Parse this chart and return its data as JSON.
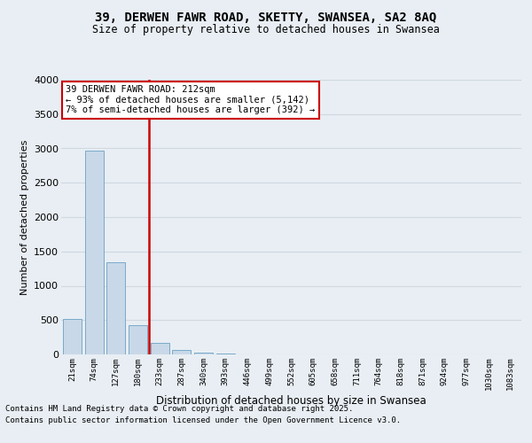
{
  "title1": "39, DERWEN FAWR ROAD, SKETTY, SWANSEA, SA2 8AQ",
  "title2": "Size of property relative to detached houses in Swansea",
  "xlabel": "Distribution of detached houses by size in Swansea",
  "ylabel": "Number of detached properties",
  "annotation_line1": "39 DERWEN FAWR ROAD: 212sqm",
  "annotation_line2": "← 93% of detached houses are smaller (5,142)",
  "annotation_line3": "7% of semi-detached houses are larger (392) →",
  "categories": [
    "21sqm",
    "74sqm",
    "127sqm",
    "180sqm",
    "233sqm",
    "287sqm",
    "340sqm",
    "393sqm",
    "446sqm",
    "499sqm",
    "552sqm",
    "605sqm",
    "658sqm",
    "711sqm",
    "764sqm",
    "818sqm",
    "871sqm",
    "924sqm",
    "977sqm",
    "1030sqm",
    "1083sqm"
  ],
  "values": [
    520,
    2970,
    1340,
    430,
    170,
    65,
    28,
    12,
    6,
    3,
    2,
    1,
    1,
    0,
    0,
    0,
    0,
    0,
    0,
    0,
    0
  ],
  "bar_color": "#c8d8e8",
  "bar_edge_color": "#7aaac8",
  "vline_color": "#cc0000",
  "annotation_box_edge_color": "#cc0000",
  "annotation_box_face_color": "#ffffff",
  "grid_color": "#d0d8e0",
  "background_color": "#e8eef4",
  "ylim": [
    0,
    4000
  ],
  "yticks": [
    0,
    500,
    1000,
    1500,
    2000,
    2500,
    3000,
    3500,
    4000
  ],
  "footnote1": "Contains HM Land Registry data © Crown copyright and database right 2025.",
  "footnote2": "Contains public sector information licensed under the Open Government Licence v3.0."
}
